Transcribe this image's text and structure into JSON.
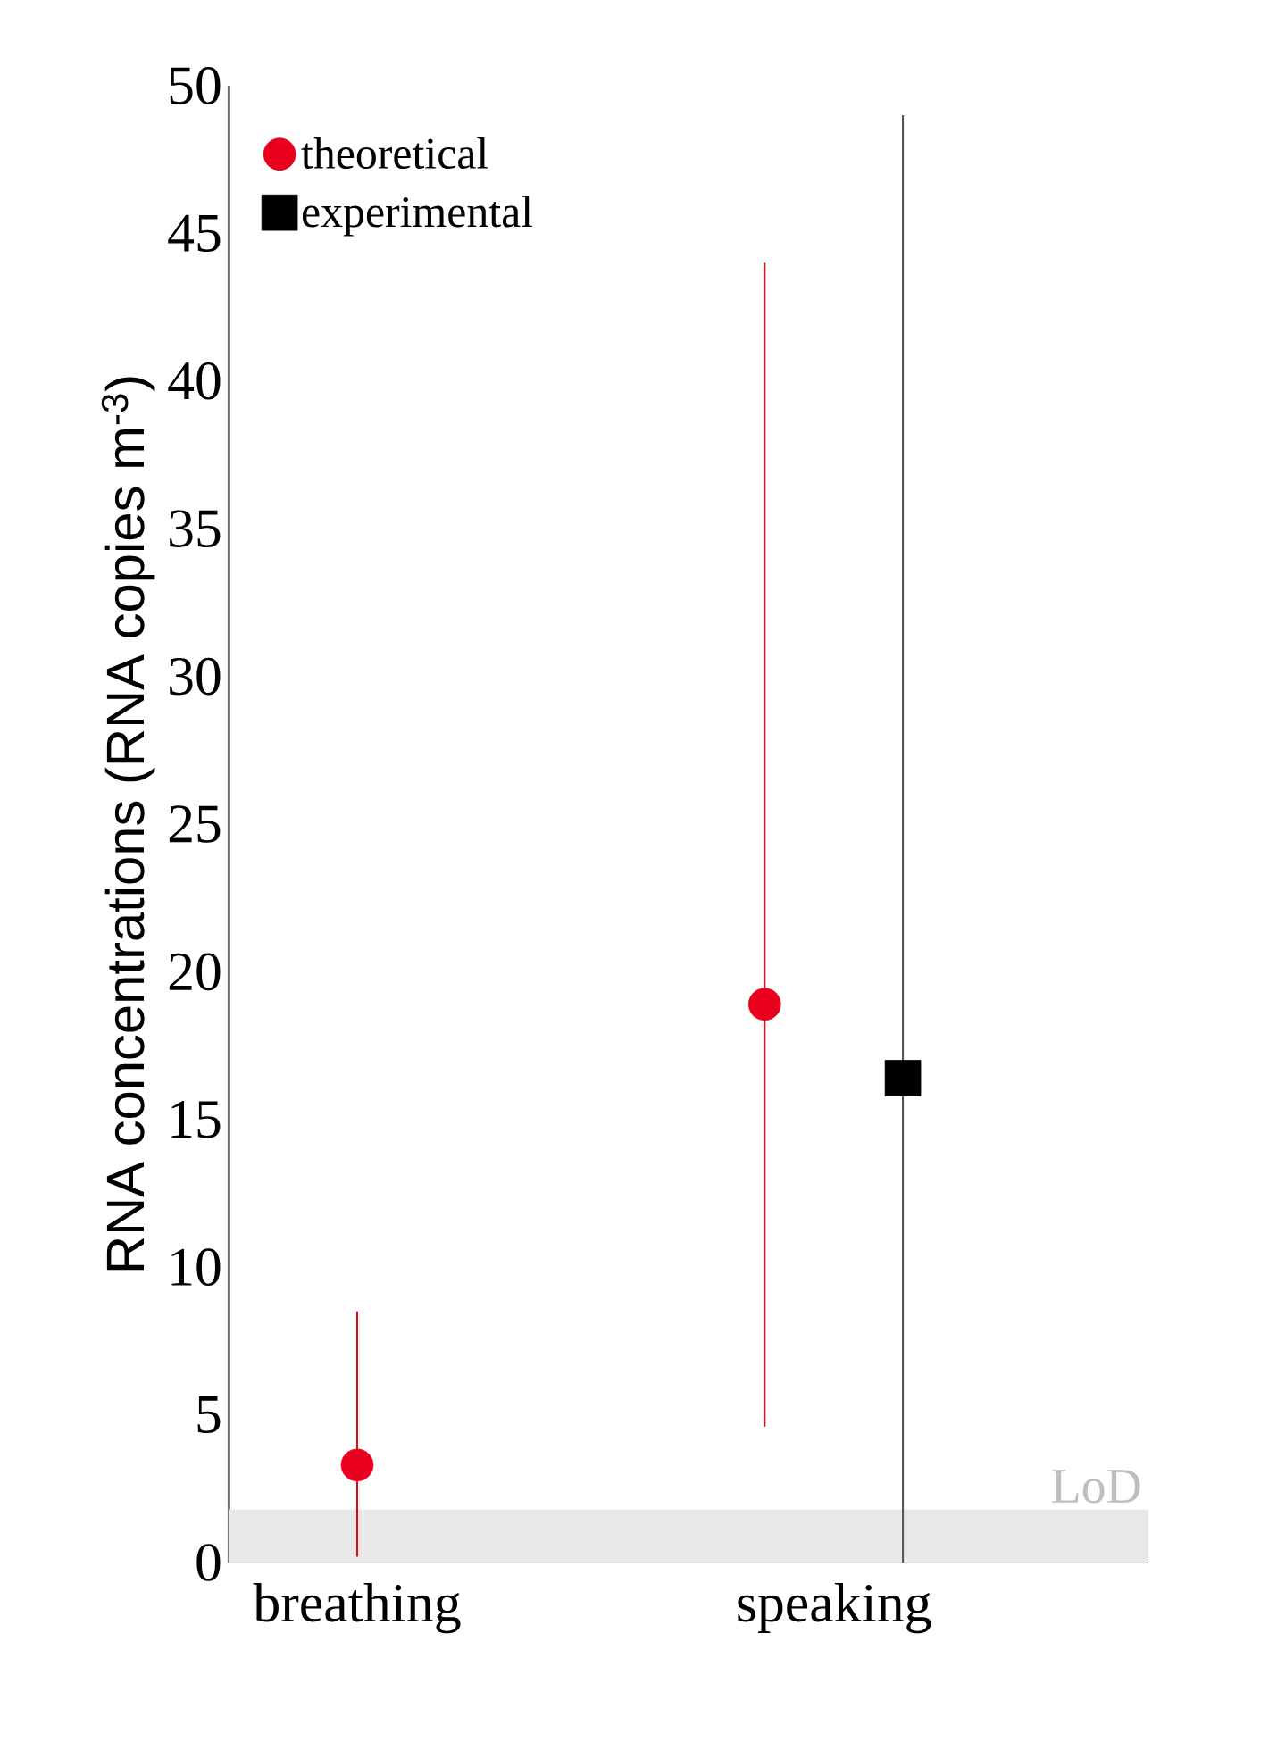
{
  "chart_data": {
    "type": "scatter",
    "ylabel": "RNA concentrations (RNA copies m$^{-3}$)",
    "categories": [
      "breathing",
      "speaking"
    ],
    "series": [
      {
        "name": "theoretical",
        "color": "#e8001c",
        "marker": "circle",
        "values": [
          3.3,
          18.9
        ],
        "errors": [
          [
            0.2,
            8.5
          ],
          [
            4.6,
            44.0
          ]
        ]
      },
      {
        "name": "experimental",
        "color": "#000000",
        "marker": "square",
        "values": [
          null,
          16.4
        ],
        "errors": [
          null,
          [
            0,
            49
          ]
        ]
      }
    ],
    "ylim": [
      0,
      50
    ],
    "yticks": [
      0,
      5,
      10,
      15,
      20,
      25,
      30,
      35,
      40,
      45,
      50
    ],
    "bands": [
      {
        "axis": "y",
        "from": 0,
        "to": 1.8,
        "label": "LoD",
        "color": "#e8e8e8"
      }
    ],
    "legend": "top left",
    "grid": false
  }
}
